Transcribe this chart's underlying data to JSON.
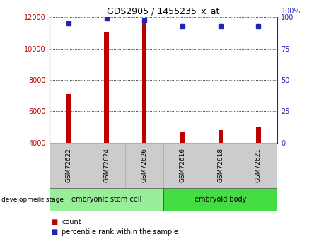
{
  "title": "GDS2905 / 1455235_x_at",
  "samples": [
    "GSM72622",
    "GSM72624",
    "GSM72626",
    "GSM72616",
    "GSM72618",
    "GSM72621"
  ],
  "counts": [
    7100,
    11050,
    11700,
    4720,
    4800,
    5020
  ],
  "percentiles": [
    95,
    99,
    97,
    93,
    93,
    93
  ],
  "ylim_left": [
    4000,
    12000
  ],
  "ylim_right": [
    0,
    100
  ],
  "yticks_left": [
    4000,
    6000,
    8000,
    10000,
    12000
  ],
  "yticks_right": [
    0,
    25,
    50,
    75,
    100
  ],
  "bar_color": "#bb0000",
  "dot_color": "#2222bb",
  "bar_baseline": 4000,
  "bar_width": 0.12,
  "groups": [
    {
      "label": "embryonic stem cell",
      "indices": [
        0,
        1,
        2
      ],
      "color": "#99ee99"
    },
    {
      "label": "embryoid body",
      "indices": [
        3,
        4,
        5
      ],
      "color": "#44dd44"
    }
  ],
  "sample_bg_color": "#cccccc",
  "stage_label": "development stage",
  "legend_count_label": "count",
  "legend_pct_label": "percentile rank within the sample",
  "grid_color": "#000000",
  "right_axis_top_label": "100%"
}
